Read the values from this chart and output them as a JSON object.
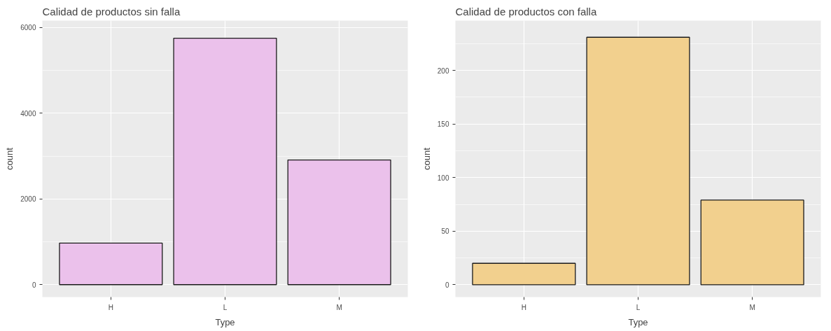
{
  "chart_data": [
    {
      "type": "bar",
      "title": "Calidad de productos sin falla",
      "xlabel": "Type",
      "ylabel": "count",
      "categories": [
        "H",
        "L",
        "M"
      ],
      "values": [
        970,
        5750,
        2910
      ],
      "color": "#ebc1eb",
      "ylim": [
        -290,
        6160
      ],
      "yticks": [
        0,
        2000,
        4000,
        6000
      ],
      "grid": true
    },
    {
      "type": "bar",
      "title": "Calidad de productos con falla",
      "xlabel": "Type",
      "ylabel": "count",
      "categories": [
        "H",
        "L",
        "M"
      ],
      "values": [
        20,
        231,
        79
      ],
      "color": "#f2d08e",
      "ylim": [
        -11.5,
        246.5
      ],
      "yticks": [
        0,
        50,
        100,
        150,
        200
      ],
      "grid": true
    }
  ]
}
